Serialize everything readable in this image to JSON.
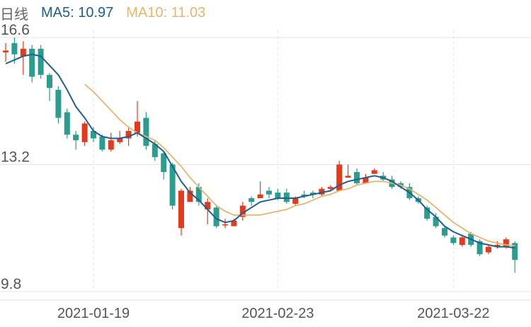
{
  "legend": {
    "label": "日线",
    "ma5_text": "MA5: 10.97",
    "ma10_text": "MA10: 11.03"
  },
  "colors": {
    "up": "#e4391b",
    "down": "#2a9d8f",
    "ma5": "#1f5f8b",
    "ma10": "#e6b66e",
    "grid": "#e6e6e6",
    "label_text": "#666666"
  },
  "chart_data": {
    "type": "candlestick",
    "title": "",
    "y_ticks": [
      "16.6",
      "13.2",
      "9.8"
    ],
    "ylim": [
      9.8,
      16.6
    ],
    "x_ticks": [
      {
        "label": "2021-01-19",
        "index": 10
      },
      {
        "label": "2021-02-23",
        "index": 31
      },
      {
        "label": "2021-03-22",
        "index": 51
      }
    ],
    "grid": true,
    "candles": [
      [
        16.2,
        16.25,
        16.45,
        15.95
      ],
      [
        16.45,
        16.15,
        16.6,
        15.9
      ],
      [
        16.1,
        16.3,
        16.5,
        15.6
      ],
      [
        16.3,
        15.55,
        16.4,
        15.4
      ],
      [
        16.3,
        15.6,
        16.4,
        15.5
      ],
      [
        15.6,
        15.25,
        15.65,
        14.9
      ],
      [
        15.2,
        14.45,
        15.3,
        14.3
      ],
      [
        14.6,
        14.0,
        14.7,
        13.9
      ],
      [
        14.0,
        13.85,
        14.1,
        13.6
      ],
      [
        13.8,
        14.3,
        14.35,
        13.7
      ],
      [
        14.1,
        13.9,
        14.2,
        13.8
      ],
      [
        13.95,
        13.6,
        14.0,
        13.55
      ],
      [
        13.6,
        13.85,
        14.05,
        13.55
      ],
      [
        13.8,
        13.9,
        14.1,
        13.75
      ],
      [
        13.9,
        14.1,
        14.2,
        13.7
      ],
      [
        14.05,
        14.35,
        14.9,
        13.95
      ],
      [
        14.45,
        13.7,
        14.6,
        13.6
      ],
      [
        13.75,
        13.4,
        13.85,
        13.3
      ],
      [
        13.5,
        13.0,
        13.55,
        12.8
      ],
      [
        13.2,
        12.1,
        13.25,
        12.0
      ],
      [
        11.5,
        12.5,
        12.55,
        11.3
      ],
      [
        12.2,
        12.5,
        12.6,
        12.2
      ],
      [
        12.6,
        12.2,
        12.7,
        12.1
      ],
      [
        12.0,
        12.2,
        12.3,
        11.6
      ],
      [
        12.05,
        11.55,
        12.1,
        11.5
      ],
      [
        11.6,
        11.6,
        11.75,
        11.5
      ],
      [
        11.55,
        11.7,
        11.75,
        11.6
      ],
      [
        11.8,
        12.1,
        12.2,
        11.7
      ],
      [
        12.3,
        12.2,
        12.35,
        12.1
      ],
      [
        12.3,
        12.4,
        12.75,
        12.3
      ],
      [
        12.5,
        12.4,
        12.6,
        12.3
      ],
      [
        12.45,
        12.3,
        12.55,
        12.25
      ],
      [
        12.45,
        12.2,
        12.55,
        12.15
      ],
      [
        12.15,
        12.3,
        12.35,
        12.1
      ],
      [
        12.4,
        12.35,
        12.5,
        12.3
      ],
      [
        12.45,
        12.4,
        12.5,
        12.3
      ],
      [
        12.4,
        12.55,
        12.6,
        12.35
      ],
      [
        12.55,
        12.6,
        12.65,
        12.5
      ],
      [
        12.5,
        13.2,
        13.3,
        12.5
      ],
      [
        12.85,
        12.9,
        13.2,
        12.85
      ],
      [
        13.0,
        12.7,
        13.1,
        12.65
      ],
      [
        12.7,
        12.85,
        12.95,
        12.7
      ],
      [
        12.95,
        13.05,
        13.1,
        12.95
      ],
      [
        12.9,
        12.8,
        13.0,
        12.75
      ],
      [
        12.8,
        12.6,
        12.9,
        12.55
      ],
      [
        12.7,
        12.6,
        12.75,
        12.55
      ],
      [
        12.6,
        12.3,
        12.7,
        12.25
      ],
      [
        12.3,
        12.2,
        12.35,
        12.15
      ],
      [
        12.05,
        11.75,
        12.1,
        11.7
      ],
      [
        11.8,
        11.55,
        11.9,
        11.5
      ],
      [
        11.5,
        11.3,
        11.55,
        11.25
      ],
      [
        11.25,
        11.1,
        11.3,
        11.05
      ],
      [
        11.05,
        11.25,
        11.3,
        11.0
      ],
      [
        11.35,
        11.05,
        11.4,
        11.0
      ],
      [
        11.15,
        10.8,
        11.2,
        10.75
      ],
      [
        10.85,
        11.0,
        11.05,
        10.8
      ],
      [
        11.0,
        11.05,
        11.15,
        10.95
      ],
      [
        11.0,
        11.2,
        11.25,
        10.95
      ],
      [
        11.1,
        10.65,
        11.15,
        10.3
      ]
    ],
    "series": [
      {
        "name": "MA5",
        "values": [
          15.9,
          16.0,
          16.1,
          16.15,
          16.1,
          15.85,
          15.6,
          15.2,
          14.75,
          14.45,
          14.1,
          13.95,
          13.9,
          13.9,
          13.95,
          14.05,
          13.9,
          13.75,
          13.55,
          13.15,
          12.75,
          12.45,
          12.25,
          12.0,
          11.75,
          11.65,
          11.7,
          11.9,
          12.05,
          12.2,
          12.25,
          12.3,
          12.3,
          12.3,
          12.35,
          12.4,
          12.45,
          12.5,
          12.65,
          12.75,
          12.8,
          12.85,
          12.9,
          12.85,
          12.75,
          12.6,
          12.45,
          12.25,
          12.0,
          11.8,
          11.55,
          11.4,
          11.3,
          11.2,
          11.1,
          11.05,
          11.0,
          11.0,
          10.97
        ]
      },
      {
        "name": "MA10",
        "values": [
          null,
          null,
          null,
          null,
          null,
          null,
          null,
          null,
          null,
          15.35,
          15.15,
          14.9,
          14.65,
          14.4,
          14.2,
          14.05,
          13.95,
          13.85,
          13.65,
          13.4,
          13.15,
          12.85,
          12.6,
          12.35,
          12.1,
          11.95,
          11.85,
          11.85,
          11.85,
          11.85,
          11.9,
          11.95,
          12.0,
          12.1,
          12.15,
          12.25,
          12.35,
          12.4,
          12.5,
          12.55,
          12.65,
          12.7,
          12.75,
          12.75,
          12.7,
          12.65,
          12.55,
          12.4,
          12.25,
          12.05,
          11.85,
          11.65,
          11.5,
          11.35,
          11.25,
          11.15,
          11.1,
          11.05,
          11.03
        ]
      }
    ]
  }
}
